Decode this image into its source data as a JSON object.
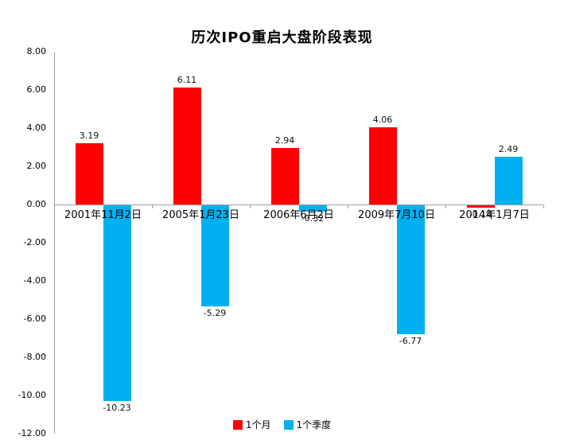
{
  "title": "历次IPO重启大盘阶段表现",
  "chart_data": {
    "type": "bar",
    "title": "历次IPO重启大盘阶段表现",
    "categories": [
      "2001年11月2日",
      "2005年1月23日",
      "2006年6月2日",
      "2009年7月10日",
      "2014年1月7日"
    ],
    "series": [
      {
        "name": "1个月",
        "color": "#ff0000",
        "values": [
          3.19,
          6.11,
          2.94,
          4.06,
          -0.14
        ]
      },
      {
        "name": "1个季度",
        "color": "#00b0f0",
        "values": [
          -10.23,
          -5.29,
          -0.32,
          -6.77,
          2.49
        ]
      }
    ],
    "xlabel": "",
    "ylabel": "",
    "ylim": [
      -12,
      8
    ],
    "ytick_step": 2,
    "ytick_labels": [
      "8.00",
      "6.00",
      "4.00",
      "2.00",
      "0.00",
      "-2.00",
      "-4.00",
      "-6.00",
      "-8.00",
      "-10.00",
      "-12.00"
    ],
    "grid": false,
    "legend_position": "bottom",
    "axis_color": "#9d9d9d",
    "value_label_decimals": 2
  }
}
